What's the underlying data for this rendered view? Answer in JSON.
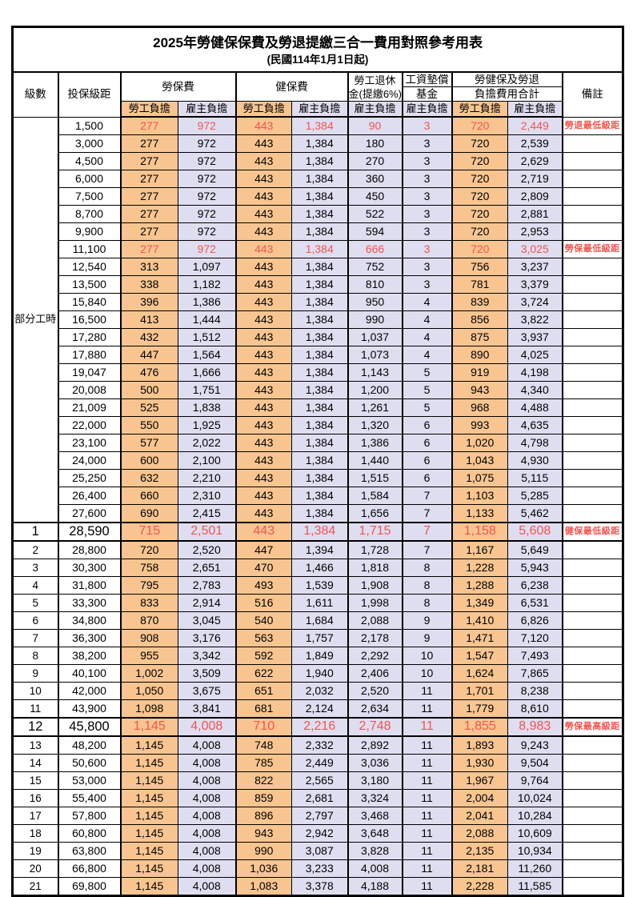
{
  "title": "2025年勞健保保費及勞退提繳三合一費用對照參考用表",
  "subtitle": "(民國114年1月1日起)",
  "colors": {
    "red_text": "#f4544e",
    "employee_bg": "#f8c591",
    "employer_bg": "#dfdef1",
    "border": "#000000"
  },
  "header": {
    "level": "級數",
    "bracket": "投保級距",
    "labor_ins": "勞保費",
    "health_ins": "健保費",
    "pension_line1": "勞工退休",
    "pension_line2": "金(提繳6%)",
    "wage_fund_line1": "工資墊償",
    "wage_fund_line2": "基金",
    "total_line1": "勞健保及勞退",
    "total_line2": "負擔費用合計",
    "remark": "備註",
    "employee": "勞工負擔",
    "employer": "雇主負擔"
  },
  "part_time": {
    "label": "部分工時",
    "span": 23
  },
  "rows": [
    {
      "level": "",
      "bracket": "1,500",
      "cells": [
        "277",
        "972",
        "443",
        "1,384",
        "90",
        "3",
        "720",
        "2,449"
      ],
      "remark": "勞退最低級距",
      "style": "red"
    },
    {
      "level": "",
      "bracket": "3,000",
      "cells": [
        "277",
        "972",
        "443",
        "1,384",
        "180",
        "3",
        "720",
        "2,539"
      ],
      "remark": "",
      "style": ""
    },
    {
      "level": "",
      "bracket": "4,500",
      "cells": [
        "277",
        "972",
        "443",
        "1,384",
        "270",
        "3",
        "720",
        "2,629"
      ],
      "remark": "",
      "style": ""
    },
    {
      "level": "",
      "bracket": "6,000",
      "cells": [
        "277",
        "972",
        "443",
        "1,384",
        "360",
        "3",
        "720",
        "2,719"
      ],
      "remark": "",
      "style": ""
    },
    {
      "level": "",
      "bracket": "7,500",
      "cells": [
        "277",
        "972",
        "443",
        "1,384",
        "450",
        "3",
        "720",
        "2,809"
      ],
      "remark": "",
      "style": ""
    },
    {
      "level": "",
      "bracket": "8,700",
      "cells": [
        "277",
        "972",
        "443",
        "1,384",
        "522",
        "3",
        "720",
        "2,881"
      ],
      "remark": "",
      "style": ""
    },
    {
      "level": "",
      "bracket": "9,900",
      "cells": [
        "277",
        "972",
        "443",
        "1,384",
        "594",
        "3",
        "720",
        "2,953"
      ],
      "remark": "",
      "style": ""
    },
    {
      "level": "",
      "bracket": "11,100",
      "cells": [
        "277",
        "972",
        "443",
        "1,384",
        "666",
        "3",
        "720",
        "3,025"
      ],
      "remark": "勞保最低級距",
      "style": "red"
    },
    {
      "level": "",
      "bracket": "12,540",
      "cells": [
        "313",
        "1,097",
        "443",
        "1,384",
        "752",
        "3",
        "756",
        "3,237"
      ],
      "remark": "",
      "style": ""
    },
    {
      "level": "",
      "bracket": "13,500",
      "cells": [
        "338",
        "1,182",
        "443",
        "1,384",
        "810",
        "3",
        "781",
        "3,379"
      ],
      "remark": "",
      "style": ""
    },
    {
      "level": "",
      "bracket": "15,840",
      "cells": [
        "396",
        "1,386",
        "443",
        "1,384",
        "950",
        "4",
        "839",
        "3,724"
      ],
      "remark": "",
      "style": ""
    },
    {
      "level": "",
      "bracket": "16,500",
      "cells": [
        "413",
        "1,444",
        "443",
        "1,384",
        "990",
        "4",
        "856",
        "3,822"
      ],
      "remark": "",
      "style": ""
    },
    {
      "level": "",
      "bracket": "17,280",
      "cells": [
        "432",
        "1,512",
        "443",
        "1,384",
        "1,037",
        "4",
        "875",
        "3,937"
      ],
      "remark": "",
      "style": ""
    },
    {
      "level": "",
      "bracket": "17,880",
      "cells": [
        "447",
        "1,564",
        "443",
        "1,384",
        "1,073",
        "4",
        "890",
        "4,025"
      ],
      "remark": "",
      "style": ""
    },
    {
      "level": "",
      "bracket": "19,047",
      "cells": [
        "476",
        "1,666",
        "443",
        "1,384",
        "1,143",
        "5",
        "919",
        "4,198"
      ],
      "remark": "",
      "style": ""
    },
    {
      "level": "",
      "bracket": "20,008",
      "cells": [
        "500",
        "1,751",
        "443",
        "1,384",
        "1,200",
        "5",
        "943",
        "4,340"
      ],
      "remark": "",
      "style": ""
    },
    {
      "level": "",
      "bracket": "21,009",
      "cells": [
        "525",
        "1,838",
        "443",
        "1,384",
        "1,261",
        "5",
        "968",
        "4,488"
      ],
      "remark": "",
      "style": ""
    },
    {
      "level": "",
      "bracket": "22,000",
      "cells": [
        "550",
        "1,925",
        "443",
        "1,384",
        "1,320",
        "6",
        "993",
        "4,635"
      ],
      "remark": "",
      "style": ""
    },
    {
      "level": "",
      "bracket": "23,100",
      "cells": [
        "577",
        "2,022",
        "443",
        "1,384",
        "1,386",
        "6",
        "1,020",
        "4,798"
      ],
      "remark": "",
      "style": ""
    },
    {
      "level": "",
      "bracket": "24,000",
      "cells": [
        "600",
        "2,100",
        "443",
        "1,384",
        "1,440",
        "6",
        "1,043",
        "4,930"
      ],
      "remark": "",
      "style": ""
    },
    {
      "level": "",
      "bracket": "25,250",
      "cells": [
        "632",
        "2,210",
        "443",
        "1,384",
        "1,515",
        "6",
        "1,075",
        "5,115"
      ],
      "remark": "",
      "style": ""
    },
    {
      "level": "",
      "bracket": "26,400",
      "cells": [
        "660",
        "2,310",
        "443",
        "1,384",
        "1,584",
        "7",
        "1,103",
        "5,285"
      ],
      "remark": "",
      "style": ""
    },
    {
      "level": "",
      "bracket": "27,600",
      "cells": [
        "690",
        "2,415",
        "443",
        "1,384",
        "1,656",
        "7",
        "1,133",
        "5,462"
      ],
      "remark": "",
      "style": ""
    },
    {
      "level": "1",
      "bracket": "28,590",
      "cells": [
        "715",
        "2,501",
        "443",
        "1,384",
        "1,715",
        "7",
        "1,158",
        "5,608"
      ],
      "remark": "健保最低級距",
      "style": "red big"
    },
    {
      "level": "2",
      "bracket": "28,800",
      "cells": [
        "720",
        "2,520",
        "447",
        "1,394",
        "1,728",
        "7",
        "1,167",
        "5,649"
      ],
      "remark": "",
      "style": ""
    },
    {
      "level": "3",
      "bracket": "30,300",
      "cells": [
        "758",
        "2,651",
        "470",
        "1,466",
        "1,818",
        "8",
        "1,228",
        "5,943"
      ],
      "remark": "",
      "style": ""
    },
    {
      "level": "4",
      "bracket": "31,800",
      "cells": [
        "795",
        "2,783",
        "493",
        "1,539",
        "1,908",
        "8",
        "1,288",
        "6,238"
      ],
      "remark": "",
      "style": ""
    },
    {
      "level": "5",
      "bracket": "33,300",
      "cells": [
        "833",
        "2,914",
        "516",
        "1,611",
        "1,998",
        "8",
        "1,349",
        "6,531"
      ],
      "remark": "",
      "style": ""
    },
    {
      "level": "6",
      "bracket": "34,800",
      "cells": [
        "870",
        "3,045",
        "540",
        "1,684",
        "2,088",
        "9",
        "1,410",
        "6,826"
      ],
      "remark": "",
      "style": ""
    },
    {
      "level": "7",
      "bracket": "36,300",
      "cells": [
        "908",
        "3,176",
        "563",
        "1,757",
        "2,178",
        "9",
        "1,471",
        "7,120"
      ],
      "remark": "",
      "style": ""
    },
    {
      "level": "8",
      "bracket": "38,200",
      "cells": [
        "955",
        "3,342",
        "592",
        "1,849",
        "2,292",
        "10",
        "1,547",
        "7,493"
      ],
      "remark": "",
      "style": ""
    },
    {
      "level": "9",
      "bracket": "40,100",
      "cells": [
        "1,002",
        "3,509",
        "622",
        "1,940",
        "2,406",
        "10",
        "1,624",
        "7,865"
      ],
      "remark": "",
      "style": ""
    },
    {
      "level": "10",
      "bracket": "42,000",
      "cells": [
        "1,050",
        "3,675",
        "651",
        "2,032",
        "2,520",
        "11",
        "1,701",
        "8,238"
      ],
      "remark": "",
      "style": ""
    },
    {
      "level": "11",
      "bracket": "43,900",
      "cells": [
        "1,098",
        "3,841",
        "681",
        "2,124",
        "2,634",
        "11",
        "1,779",
        "8,610"
      ],
      "remark": "",
      "style": ""
    },
    {
      "level": "12",
      "bracket": "45,800",
      "cells": [
        "1,145",
        "4,008",
        "710",
        "2,216",
        "2,748",
        "11",
        "1,855",
        "8,983"
      ],
      "remark": "勞保最高級距",
      "style": "red big"
    },
    {
      "level": "13",
      "bracket": "48,200",
      "cells": [
        "1,145",
        "4,008",
        "748",
        "2,332",
        "2,892",
        "11",
        "1,893",
        "9,243"
      ],
      "remark": "",
      "style": ""
    },
    {
      "level": "14",
      "bracket": "50,600",
      "cells": [
        "1,145",
        "4,008",
        "785",
        "2,449",
        "3,036",
        "11",
        "1,930",
        "9,504"
      ],
      "remark": "",
      "style": ""
    },
    {
      "level": "15",
      "bracket": "53,000",
      "cells": [
        "1,145",
        "4,008",
        "822",
        "2,565",
        "3,180",
        "11",
        "1,967",
        "9,764"
      ],
      "remark": "",
      "style": ""
    },
    {
      "level": "16",
      "bracket": "55,400",
      "cells": [
        "1,145",
        "4,008",
        "859",
        "2,681",
        "3,324",
        "11",
        "2,004",
        "10,024"
      ],
      "remark": "",
      "style": ""
    },
    {
      "level": "17",
      "bracket": "57,800",
      "cells": [
        "1,145",
        "4,008",
        "896",
        "2,797",
        "3,468",
        "11",
        "2,041",
        "10,284"
      ],
      "remark": "",
      "style": ""
    },
    {
      "level": "18",
      "bracket": "60,800",
      "cells": [
        "1,145",
        "4,008",
        "943",
        "2,942",
        "3,648",
        "11",
        "2,088",
        "10,609"
      ],
      "remark": "",
      "style": ""
    },
    {
      "level": "19",
      "bracket": "63,800",
      "cells": [
        "1,145",
        "4,008",
        "990",
        "3,087",
        "3,828",
        "11",
        "2,135",
        "10,934"
      ],
      "remark": "",
      "style": ""
    },
    {
      "level": "20",
      "bracket": "66,800",
      "cells": [
        "1,145",
        "4,008",
        "1,036",
        "3,233",
        "4,008",
        "11",
        "2,181",
        "11,260"
      ],
      "remark": "",
      "style": ""
    },
    {
      "level": "21",
      "bracket": "69,800",
      "cells": [
        "1,145",
        "4,008",
        "1,083",
        "3,378",
        "4,188",
        "11",
        "2,228",
        "11,585"
      ],
      "remark": "",
      "style": ""
    }
  ]
}
